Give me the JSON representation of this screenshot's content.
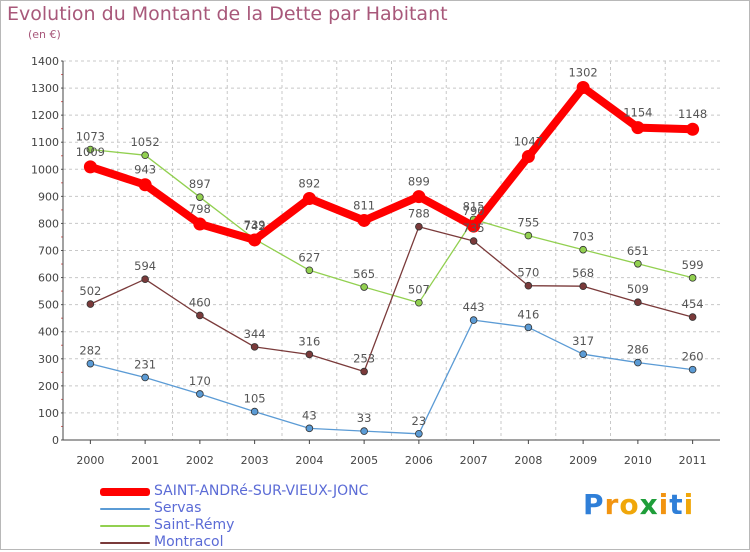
{
  "chart_data": {
    "type": "line",
    "title": "Evolution du Montant de la Dette par Habitant",
    "unit": "(en €)",
    "x": [
      "2000",
      "2001",
      "2002",
      "2003",
      "2004",
      "2005",
      "2006",
      "2007",
      "2008",
      "2009",
      "2010",
      "2011"
    ],
    "ylim": [
      0,
      1400
    ],
    "yticks": [
      "0",
      "100",
      "200",
      "300",
      "400",
      "500",
      "600",
      "700",
      "800",
      "900",
      "1000",
      "1100",
      "1200",
      "1300",
      "1400"
    ],
    "grid": true,
    "series": [
      {
        "name": "SAINT-ANDRé-SUR-VIEUX-JONC",
        "color": "#ff0000",
        "values": [
          1009,
          943,
          798,
          739,
          892,
          811,
          899,
          790,
          1047,
          1302,
          1154,
          1148
        ],
        "labels": [
          "1009",
          "943",
          "798",
          "739",
          "892",
          "811",
          "899",
          "790",
          "1047",
          "1302",
          "1154",
          "1148"
        ]
      },
      {
        "name": "Servas",
        "color": "#5b9bd5",
        "values": [
          282,
          231,
          170,
          105,
          43,
          33,
          23,
          443,
          416,
          317,
          286,
          260
        ],
        "labels": [
          "282",
          "231",
          "170",
          "105",
          "43",
          "33",
          "23",
          "443",
          "416",
          "317",
          "286",
          "260"
        ]
      },
      {
        "name": "Saint-Rémy",
        "color": "#92d050",
        "values": [
          1073,
          1052,
          897,
          742,
          627,
          565,
          507,
          815,
          755,
          703,
          651,
          599
        ],
        "labels": [
          "1073",
          "1052",
          "897",
          "742",
          "627",
          "565",
          "507",
          "815",
          "755",
          "703",
          "651",
          "599"
        ]
      },
      {
        "name": "Montracol",
        "color": "#7a3a3a",
        "values": [
          502,
          594,
          460,
          344,
          316,
          253,
          788,
          735,
          570,
          568,
          509,
          454
        ],
        "labels": [
          "502",
          "594",
          "460",
          "344",
          "316",
          "253",
          "788",
          "735",
          "570",
          "568",
          "509",
          "454"
        ]
      }
    ]
  },
  "logo": {
    "text": "Proxiti",
    "letters": [
      "P",
      "r",
      "o",
      "x",
      "i",
      "t",
      "i"
    ],
    "colors": [
      "#2f7fd8",
      "#f29411",
      "#f0a70a",
      "#1f9e3a",
      "#f29411",
      "#2f7fd8",
      "#f0a70a"
    ]
  }
}
